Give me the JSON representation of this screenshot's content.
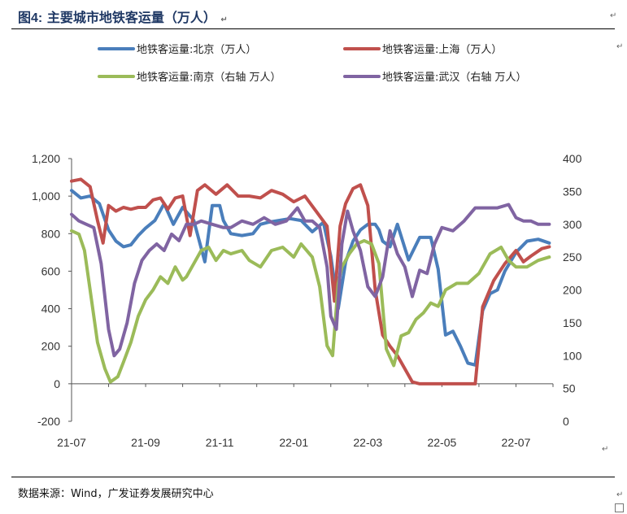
{
  "figure": {
    "label": "图4:",
    "title": "主要城市地铁客运量（万人）",
    "source": "数据来源：Wind，广发证券发展研究中心",
    "para_mark": "↵"
  },
  "chart_data": {
    "type": "line",
    "x_tick_labels": [
      "21-07",
      "21-09",
      "21-11",
      "22-01",
      "22-03",
      "22-05",
      "22-07"
    ],
    "x_range": [
      0,
      13
    ],
    "left_axis": {
      "ticks": [
        "1,200",
        "1,000",
        "800",
        "600",
        "400",
        "200",
        "0",
        "-200"
      ],
      "range": [
        -200,
        1200
      ]
    },
    "right_axis": {
      "ticks": [
        "400",
        "350",
        "300",
        "250",
        "200",
        "150",
        "100",
        "50",
        "0"
      ],
      "range": [
        0,
        400
      ]
    },
    "series": [
      {
        "name": "地铁客运量:北京（万人）",
        "axis": "left",
        "color": "#4a7ebb",
        "x": [
          0,
          0.25,
          0.5,
          0.75,
          1.0,
          1.2,
          1.4,
          1.6,
          1.8,
          2.0,
          2.25,
          2.5,
          2.75,
          3.0,
          3.3,
          3.6,
          3.8,
          4.0,
          4.1,
          4.3,
          4.6,
          4.9,
          5.1,
          5.3,
          5.6,
          5.9,
          6.2,
          6.5,
          6.8,
          7.0,
          7.2,
          7.4,
          7.6,
          7.8,
          8.0,
          8.2,
          8.3,
          8.4,
          8.6,
          8.8,
          9.1,
          9.4,
          9.7,
          9.9,
          10.1,
          10.3,
          10.5,
          10.7,
          10.9,
          11.1,
          11.3,
          11.5,
          11.7,
          12.0,
          12.3,
          12.6,
          12.9
        ],
        "values": [
          1030,
          990,
          1000,
          960,
          820,
          760,
          730,
          740,
          790,
          830,
          870,
          960,
          850,
          940,
          870,
          650,
          950,
          950,
          870,
          800,
          790,
          800,
          850,
          860,
          870,
          880,
          870,
          810,
          860,
          680,
          400,
          650,
          760,
          820,
          850,
          850,
          820,
          760,
          730,
          850,
          660,
          780,
          780,
          610,
          260,
          280,
          200,
          110,
          100,
          390,
          480,
          500,
          600,
          700,
          760,
          770,
          750
        ]
      },
      {
        "name": "地铁客运量:上海（万人）",
        "axis": "left",
        "color": "#c0504d",
        "x": [
          0,
          0.25,
          0.5,
          0.7,
          0.85,
          1.0,
          1.2,
          1.4,
          1.6,
          1.8,
          2.0,
          2.2,
          2.4,
          2.6,
          2.8,
          3.0,
          3.2,
          3.4,
          3.6,
          3.9,
          4.2,
          4.5,
          4.8,
          5.1,
          5.4,
          5.7,
          6.0,
          6.3,
          6.6,
          6.9,
          7.1,
          7.25,
          7.4,
          7.6,
          7.8,
          8.0,
          8.2,
          8.4,
          8.6,
          8.8,
          9.0,
          9.2,
          9.4,
          9.6,
          9.8,
          10.0,
          10.2,
          10.5,
          10.7,
          10.9,
          11.1,
          11.4,
          11.7,
          12.0,
          12.2,
          12.4,
          12.7,
          12.9
        ],
        "values": [
          1080,
          1090,
          1050,
          870,
          750,
          950,
          920,
          940,
          930,
          940,
          940,
          980,
          990,
          930,
          990,
          1000,
          790,
          1030,
          1060,
          1010,
          1060,
          1000,
          1000,
          990,
          1030,
          1010,
          970,
          1000,
          920,
          840,
          440,
          840,
          960,
          1040,
          1060,
          950,
          500,
          260,
          200,
          150,
          80,
          10,
          0,
          0,
          0,
          0,
          0,
          0,
          0,
          0,
          410,
          550,
          640,
          710,
          650,
          680,
          720,
          730
        ]
      },
      {
        "name": "地铁客运量:南京（右轴 万人）",
        "axis": "right",
        "color": "#9bbb59",
        "x": [
          0,
          0.2,
          0.35,
          0.5,
          0.7,
          0.9,
          1.05,
          1.25,
          1.4,
          1.6,
          1.8,
          2.0,
          2.2,
          2.4,
          2.6,
          2.8,
          3.0,
          3.1,
          3.3,
          3.5,
          3.7,
          3.9,
          4.1,
          4.3,
          4.6,
          4.8,
          5.1,
          5.4,
          5.7,
          6.0,
          6.2,
          6.5,
          6.7,
          6.9,
          7.05,
          7.2,
          7.3,
          7.5,
          7.7,
          7.9,
          8.1,
          8.3,
          8.5,
          8.7,
          8.9,
          9.1,
          9.3,
          9.5,
          9.7,
          9.9,
          10.1,
          10.4,
          10.7,
          11.0,
          11.3,
          11.6,
          11.8,
          12.0,
          12.3,
          12.6,
          12.9
        ],
        "values": [
          290,
          285,
          260,
          200,
          120,
          80,
          60,
          68,
          90,
          120,
          160,
          185,
          200,
          220,
          210,
          235,
          215,
          220,
          240,
          260,
          265,
          245,
          260,
          255,
          260,
          245,
          235,
          260,
          265,
          250,
          270,
          250,
          205,
          115,
          100,
          210,
          235,
          255,
          270,
          275,
          270,
          240,
          110,
          85,
          130,
          135,
          155,
          165,
          180,
          175,
          200,
          210,
          210,
          225,
          255,
          265,
          245,
          235,
          235,
          245,
          250
        ]
      },
      {
        "name": "地铁客运量:武汉（右轴 万人）",
        "axis": "right",
        "color": "#8064a2",
        "x": [
          0,
          0.2,
          0.4,
          0.6,
          0.8,
          1.0,
          1.15,
          1.3,
          1.5,
          1.7,
          1.9,
          2.1,
          2.3,
          2.5,
          2.7,
          2.9,
          3.1,
          3.3,
          3.5,
          3.8,
          4.1,
          4.3,
          4.6,
          4.9,
          5.2,
          5.5,
          5.8,
          6.1,
          6.3,
          6.5,
          6.7,
          6.9,
          7.0,
          7.15,
          7.3,
          7.45,
          7.6,
          7.8,
          8.0,
          8.2,
          8.4,
          8.6,
          8.8,
          9.0,
          9.2,
          9.4,
          9.6,
          9.8,
          10.0,
          10.3,
          10.6,
          10.9,
          11.2,
          11.5,
          11.8,
          12.0,
          12.2,
          12.4,
          12.6,
          12.9
        ],
        "values": [
          315,
          305,
          300,
          295,
          240,
          140,
          100,
          110,
          150,
          210,
          245,
          260,
          270,
          260,
          285,
          275,
          300,
          300,
          305,
          300,
          295,
          295,
          305,
          300,
          310,
          300,
          305,
          325,
          305,
          305,
          295,
          235,
          160,
          140,
          270,
          320,
          290,
          260,
          205,
          190,
          220,
          290,
          255,
          235,
          190,
          230,
          225,
          270,
          295,
          290,
          305,
          325,
          325,
          325,
          330,
          310,
          305,
          305,
          300,
          300
        ]
      }
    ]
  }
}
